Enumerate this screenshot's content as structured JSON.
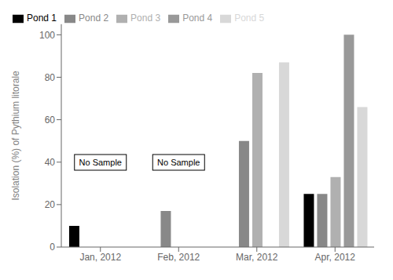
{
  "chart_data": {
    "type": "bar",
    "categories": [
      "Jan, 2012",
      "Feb, 2012",
      "Mar, 2012",
      "Apr, 2012"
    ],
    "series": [
      {
        "name": "Pond 1",
        "color": "#000000",
        "values": [
          10,
          null,
          null,
          25
        ]
      },
      {
        "name": "Pond 2",
        "color": "#888888",
        "values": [
          null,
          17,
          50,
          25
        ]
      },
      {
        "name": "Pond 3",
        "color": "#b0b0b0",
        "values": [
          null,
          null,
          82,
          33
        ]
      },
      {
        "name": "Pond 4",
        "color": "#999999",
        "values": [
          null,
          null,
          null,
          100
        ]
      },
      {
        "name": "Pond 5",
        "color": "#d8d8d8",
        "values": [
          null,
          null,
          87,
          66
        ]
      }
    ],
    "ylabel": "Isolation (%) of Pythium litorale",
    "ylim": [
      0,
      105
    ],
    "yticks": [
      0,
      20,
      40,
      60,
      80,
      100
    ],
    "grid": false,
    "legend": "upper left",
    "annotations": [
      {
        "text": "No Sample",
        "category": "Jan, 2012"
      },
      {
        "text": "No Sample",
        "category": "Feb, 2012"
      }
    ]
  }
}
